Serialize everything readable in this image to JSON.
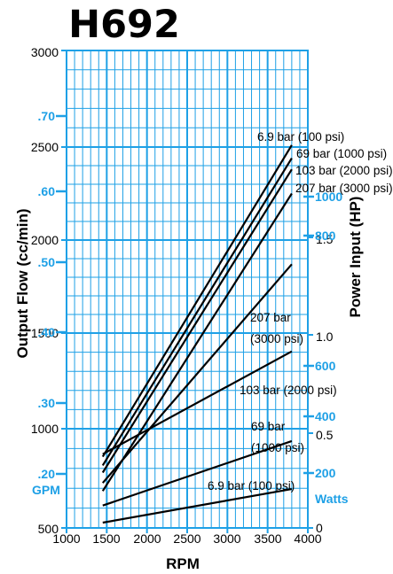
{
  "colors": {
    "grid": "#1ea0e6",
    "axis_blue": "#1ea0e6",
    "curve": "#000000"
  },
  "chart_data": {
    "type": "line",
    "title": "H692",
    "xlabel": "RPM",
    "x_ticks": [
      "1000",
      "1500",
      "2000",
      "2500",
      "3000",
      "3500",
      "4000"
    ],
    "xlim": [
      1000,
      4000
    ],
    "left_axes": {
      "output_flow": {
        "label": "Output Flow (cc/min)",
        "ticks": [
          "500",
          "1000",
          "1500",
          "2000",
          "2500",
          "3000"
        ],
        "lim": [
          500,
          3000
        ]
      },
      "gpm": {
        "label": "GPM",
        "ticks": [
          ".20",
          ".30",
          ".40",
          ".50",
          ".60",
          ".70"
        ]
      }
    },
    "right_axes": {
      "power_hp": {
        "label": "Power Input (HP)",
        "ticks": [
          "0",
          "0.5",
          "1.0",
          "1.5"
        ]
      },
      "watts": {
        "label": "Watts",
        "ticks": [
          "200",
          "400",
          "600",
          "800",
          "1000"
        ]
      }
    },
    "flow_series": [
      {
        "name": "6.9 bar (100 psi)",
        "x": [
          1450,
          3800
        ],
        "y": [
          859,
          2510
        ]
      },
      {
        "name": "69 bar (1000 psi)",
        "x": [
          1450,
          3800
        ],
        "y": [
          815,
          2440
        ]
      },
      {
        "name": "103 bar (2000 psi)",
        "x": [
          1450,
          3800
        ],
        "y": [
          779,
          2380
        ]
      },
      {
        "name": "207 bar (3000 psi)",
        "x": [
          1450,
          3800
        ],
        "y": [
          686,
          2250
        ]
      }
    ],
    "power_series": [
      {
        "name": "207 bar (3000 psi)",
        "x": [
          1450,
          3800
        ],
        "y": [
          727,
          1870
        ]
      },
      {
        "name": "103 bar (2000 psi)",
        "x": [
          1450,
          3800
        ],
        "y": [
          872,
          1404
        ]
      },
      {
        "name": "69 bar (1000 psi)",
        "x": [
          1450,
          3800
        ],
        "y": [
          613,
          938
        ]
      },
      {
        "name": "6.9 bar (100 psi)",
        "x": [
          1450,
          3800
        ],
        "y": [
          527,
          696
        ]
      }
    ],
    "annotations": {
      "flow_69": "69 bar (1000 psi)",
      "flow_6_9": "6.9 bar (100 psi)",
      "flow_103": "103 bar (2000 psi)",
      "flow_207": "207 bar (3000 psi)",
      "power_207_line1": "207 bar",
      "power_207_line2": "(3000 psi)",
      "power_103": "103 bar (2000 psi)",
      "power_69_line1": "69 bar",
      "power_69_line2": "(1000 psi)",
      "power_6_9": "6.9 bar (100 psi)"
    },
    "grid": true
  }
}
